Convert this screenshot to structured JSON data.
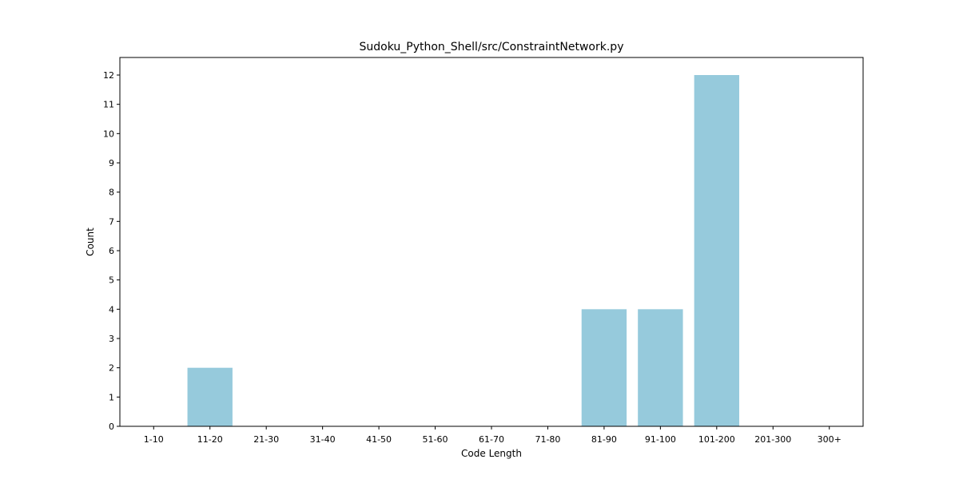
{
  "chart_data": {
    "type": "bar",
    "title": "Sudoku_Python_Shell/src/ConstraintNetwork.py",
    "xlabel": "Code Length",
    "ylabel": "Count",
    "categories": [
      "1-10",
      "11-20",
      "21-30",
      "31-40",
      "41-50",
      "51-60",
      "61-70",
      "71-80",
      "81-90",
      "91-100",
      "101-200",
      "201-300",
      "300+"
    ],
    "values": [
      0,
      2,
      0,
      0,
      0,
      0,
      0,
      0,
      4,
      4,
      12,
      0,
      0
    ],
    "ylim": [
      0,
      12.6
    ],
    "yticks": [
      "0",
      "1",
      "2",
      "3",
      "4",
      "5",
      "6",
      "7",
      "8",
      "9",
      "10",
      "11",
      "12"
    ],
    "bar_color": "#96cadc",
    "grid": false,
    "legend": "none"
  }
}
